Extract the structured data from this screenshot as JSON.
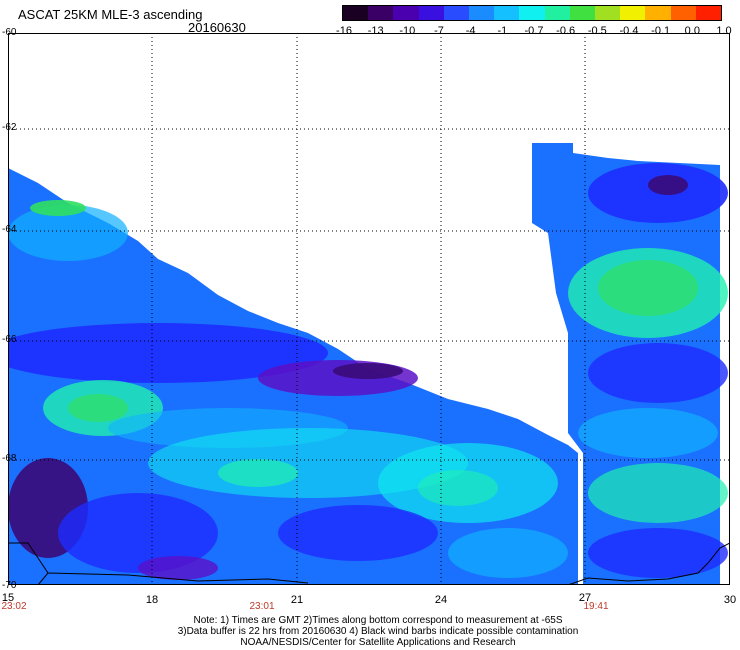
{
  "header": {
    "title": "ASCAT 25KM MLE-3 ascending",
    "date": "20160630"
  },
  "colorbar": {
    "colors": [
      "#1a0022",
      "#3a0066",
      "#4b00b0",
      "#3a10e0",
      "#2a4cff",
      "#1a8cff",
      "#14c0ff",
      "#10f0f0",
      "#20f0a0",
      "#40e040",
      "#a0e020",
      "#f0f000",
      "#ffb000",
      "#ff6000",
      "#ff2000"
    ],
    "labels": [
      "-16",
      "-13",
      "-10",
      "-7",
      "-4",
      "-1",
      "-0.7",
      "-0.6",
      "-0.5",
      "-0.4",
      "-0.1",
      "0.0",
      "1.0"
    ]
  },
  "axes": {
    "latitude_labels": [
      "-60",
      "-62",
      "-64",
      "-66",
      "-68",
      "-70"
    ],
    "longitude_labels": [
      "15",
      "18",
      "21",
      "24",
      "27",
      "30"
    ],
    "time_labels": [
      "23:02",
      "23:01",
      "19:41"
    ]
  },
  "footer": {
    "note_line1": "Note: 1) Times are GMT 2)Times along bottom correspond to measurement at -65S",
    "note_line2": "3)Data buffer is 22 hrs from 20160630 4) Black wind barbs indicate possible contamination",
    "note_line3": "NOAA/NESDIS/Center for Satellite Applications and Research"
  },
  "palette": {
    "deep_purple": "#3a0a78",
    "purple": "#5a10c8",
    "blue": "#1e2cff",
    "mid_blue": "#1a70ff",
    "light_blue": "#10b0ff",
    "cyan": "#10e6f0",
    "teal": "#20f0b0",
    "green": "#30e060"
  }
}
